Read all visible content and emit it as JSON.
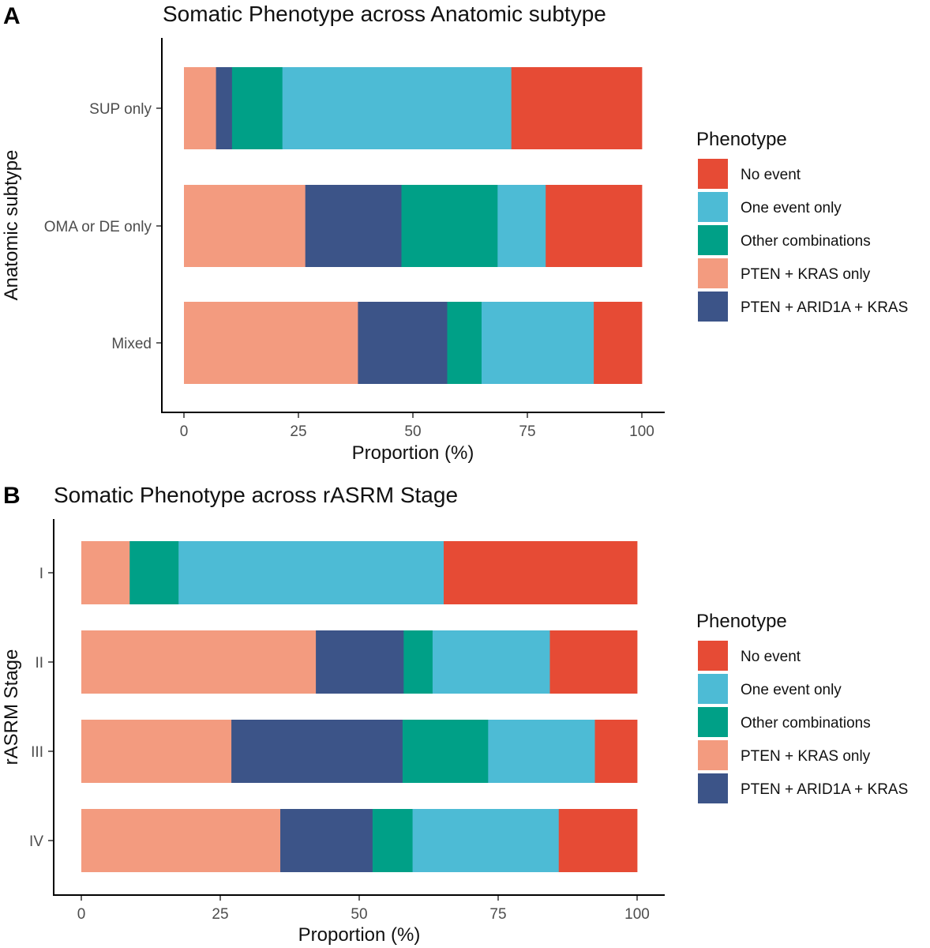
{
  "colors": {
    "No event": "#E64B35",
    "One event only": "#4DBBD5",
    "Other combinations": "#00A087",
    "PTEN + KRAS only": "#F39B7F",
    "PTEN + ARID1A + KRAS": "#3C5488"
  },
  "chart_data": [
    {
      "type": "bar",
      "orientation": "horizontal",
      "stacked": true,
      "panel": "A",
      "title": "Somatic Phenotype across Anatomic subtype",
      "xlabel": "Proportion (%)",
      "ylabel": "Anatomic subtype",
      "xlim": [
        0,
        100
      ],
      "xticks": [
        0,
        25,
        50,
        75,
        100
      ],
      "categories": [
        "SUP only",
        "OMA or DE only",
        "Mixed"
      ],
      "series": [
        {
          "name": "PTEN + KRAS only",
          "values": [
            7,
            26.5,
            38
          ]
        },
        {
          "name": "PTEN + ARID1A + KRAS",
          "values": [
            3.5,
            21,
            19.5
          ]
        },
        {
          "name": "Other combinations",
          "values": [
            11,
            21,
            7.5
          ]
        },
        {
          "name": "One event only",
          "values": [
            50,
            10.5,
            24.5
          ]
        },
        {
          "name": "No event",
          "values": [
            28.5,
            21,
            10.5
          ]
        }
      ],
      "legend": {
        "title": "Phenotype",
        "position": "right",
        "entries": [
          "No event",
          "One event only",
          "Other combinations",
          "PTEN + KRAS only",
          "PTEN + ARID1A + KRAS"
        ]
      }
    },
    {
      "type": "bar",
      "orientation": "horizontal",
      "stacked": true,
      "panel": "B",
      "title": "Somatic Phenotype across rASRM Stage",
      "xlabel": "Proportion (%)",
      "ylabel": "rASRM Stage",
      "xlim": [
        0,
        100
      ],
      "xticks": [
        0,
        25,
        50,
        75,
        100
      ],
      "categories": [
        "I",
        "II",
        "III",
        "IV"
      ],
      "series": [
        {
          "name": "PTEN + KRAS only",
          "values": [
            8.7,
            42.2,
            27,
            35.8
          ]
        },
        {
          "name": "PTEN + ARID1A + KRAS",
          "values": [
            0,
            15.8,
            30.8,
            16.6
          ]
        },
        {
          "name": "Other combinations",
          "values": [
            8.8,
            5.2,
            15.4,
            7.2
          ]
        },
        {
          "name": "One event only",
          "values": [
            47.7,
            21.1,
            19.2,
            26.3
          ]
        },
        {
          "name": "No event",
          "values": [
            34.8,
            15.7,
            7.6,
            14.1
          ]
        }
      ],
      "legend": {
        "title": "Phenotype",
        "position": "right",
        "entries": [
          "No event",
          "One event only",
          "Other combinations",
          "PTEN + KRAS only",
          "PTEN + ARID1A + KRAS"
        ]
      }
    }
  ]
}
